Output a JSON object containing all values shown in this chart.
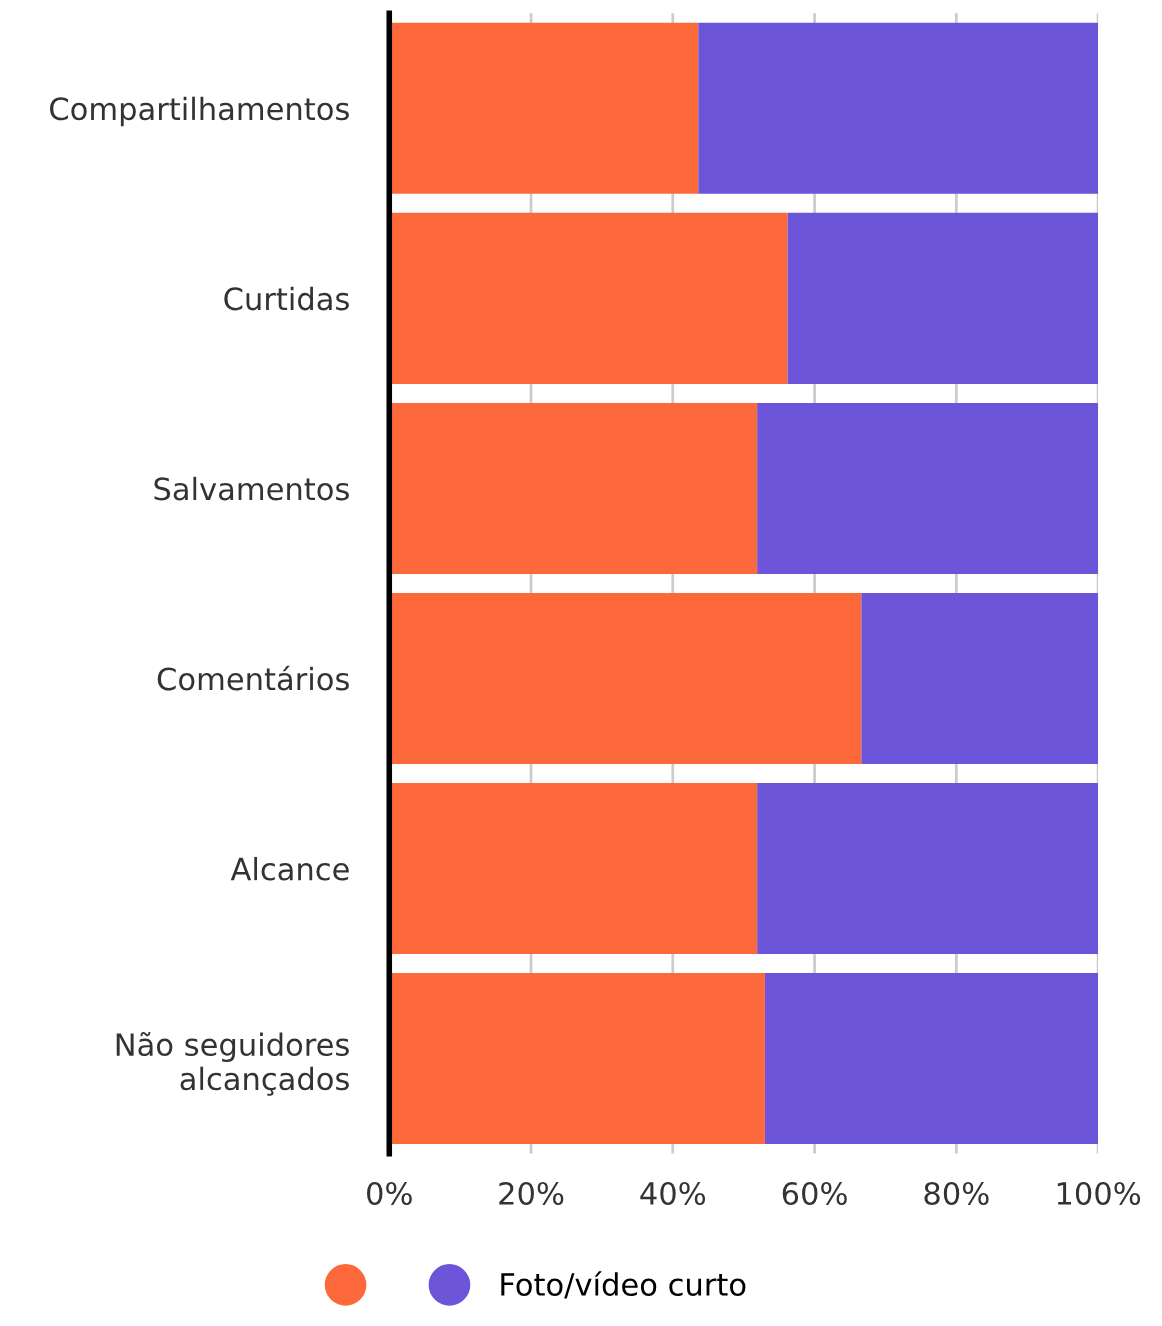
{
  "chart_data": {
    "type": "bar",
    "orientation": "horizontal",
    "stacked": true,
    "categories": [
      "Compartilhamentos",
      "Curtidas",
      "Salvamentos",
      "Comentários",
      "Alcance",
      "Não seguidores\nalcançados"
    ],
    "series": [
      {
        "color": "#fd693a",
        "values": [
          43.6,
          56.2,
          51.9,
          66.6,
          51.9,
          53.0
        ]
      },
      {
        "name": "Foto/vídeo curto",
        "color": "#6d55d9",
        "values": [
          56.4,
          43.8,
          48.1,
          33.4,
          48.1,
          47.0
        ]
      }
    ],
    "xlim": [
      0,
      100
    ],
    "xticks": [
      {
        "value": 0,
        "label": "0%"
      },
      {
        "value": 20,
        "label": "20%"
      },
      {
        "value": 40,
        "label": "40%"
      },
      {
        "value": 60,
        "label": "60%"
      },
      {
        "value": 80,
        "label": "80%"
      },
      {
        "value": 100,
        "label": "100%"
      }
    ],
    "grid": "x",
    "legend": "bottom"
  }
}
